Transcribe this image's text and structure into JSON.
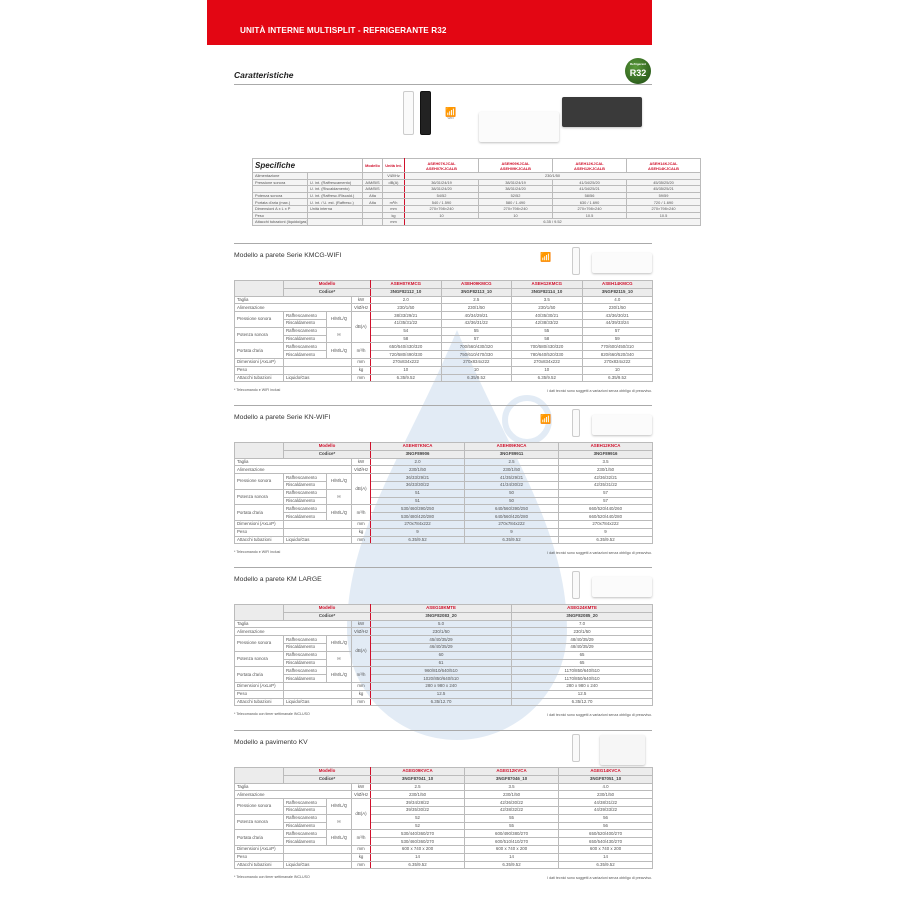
{
  "header": {
    "title": "UNITÀ INTERNE MULTISPLIT - REFRIGERANTE R32"
  },
  "caratteristiche": {
    "title": "Caratteristiche",
    "badge": "R32",
    "badge_small": "Refrigerant",
    "wifi_label": "WIFI"
  },
  "specifiche": {
    "title": "Specifiche",
    "modello": "Modello",
    "unita_int": "Unità Int.",
    "models": [
      [
        "ASEH07KJCAL",
        "ASEH07KJCALB"
      ],
      [
        "ASEH09KJCAL",
        "ASEH09KJCALB"
      ],
      [
        "ASEH12KJCAL",
        "ASEH12KJCALB"
      ],
      [
        "ASEH14KJCAL",
        "ASEH14KJCALB"
      ]
    ],
    "rows": [
      {
        "label": "Alimentazione",
        "sub": "",
        "mode": "",
        "unit": "V/Ø/Hz",
        "span": "230/1/50"
      },
      {
        "label": "Pressione sonora",
        "sub": "U. int. (Raffrescamento)",
        "mode": "A/M/B/S",
        "unit": "dB(A)",
        "values": [
          "36/31/24/19",
          "38/31/24/19",
          "41/34/25/20",
          "45/35/25/20"
        ]
      },
      {
        "label": "",
        "sub": "U. int. (Riscaldamento)",
        "mode": "A/M/B/S",
        "unit": "",
        "values": [
          "38/31/24/20",
          "38/31/24/20",
          "41/34/25/21",
          "45/35/25/21"
        ]
      },
      {
        "label": "Potenza sonora",
        "sub": "U. int. (Raffresc./Riscald.)",
        "mode": "Alta",
        "unit": "",
        "values": [
          "54/52",
          "52/52",
          "58/56",
          "59/59"
        ]
      },
      {
        "label": "Portata d'aria (max.)",
        "sub": "U. int. / U. est. (Raffresc.)",
        "mode": "Alta",
        "unit": "m³/h",
        "values": [
          "540 / 1.590",
          "580 / 1.490",
          "630 / 1.690",
          "720 / 1.690"
        ]
      },
      {
        "label": "Dimensioni A x L x P",
        "sub": "Unità interna",
        "mode": "",
        "unit": "mm",
        "values": [
          "270×798×240",
          "270×798×240",
          "270×798×240",
          "270×798×240"
        ]
      },
      {
        "label": "Peso",
        "sub": "",
        "mode": "",
        "unit": "kg",
        "values": [
          "10",
          "10",
          "10.5",
          "10.5"
        ]
      },
      {
        "label": "Attacchi tubazioni (liquido/gas)",
        "sub": "",
        "mode": "",
        "unit": "mm",
        "span": "6.35 / 9.52"
      }
    ]
  },
  "labels": {
    "modello": "Modello",
    "codice": "Codice*",
    "taglia": "Taglia",
    "alimentazione": "Alimentazione",
    "pressione": "Pressione sonora",
    "potenza": "Potenza sonora",
    "portata": "Portata d'aria",
    "dimensioni": "Dimensioni (AxLxP)",
    "peso": "Peso",
    "attacchi": "Attacchi tubazioni",
    "raff": "Raffrescamento",
    "risc": "Riscaldamento",
    "hmlq": "H/M/L/Q",
    "h": "H",
    "liqgas": "Liquido/Gas",
    "kw": "kW",
    "vhz": "V/Ø/Hz",
    "dba": "dB(A)",
    "m3h": "m³/h",
    "mm": "mm",
    "kg": "kg",
    "disclaimer": "I dati tecnici sono soggetti a variazioni senza obbligo di preavviso."
  },
  "sections": [
    {
      "title": "Modello a parete Serie KMCG-WIFI",
      "models": [
        "ASEH07KMCG",
        "ASEH09KMCG",
        "ASEH12KMCG",
        "ASEH14KMCG"
      ],
      "codes": [
        "3NGF82112_10",
        "3NGF82113_10",
        "3NGF82114_10",
        "3NGF82115_10"
      ],
      "taglia": [
        "2.0",
        "2.5",
        "3.5",
        "4.0"
      ],
      "alimentazione": [
        "230/1/50",
        "230/1/50",
        "230/1/50",
        "230/1/50"
      ],
      "pressione_raff": [
        "38/33/29/21",
        "40/34/29/21",
        "40/35/30/21",
        "43/36/30/21"
      ],
      "pressione_risc": [
        "41/35/31/22",
        "42/36/31/22",
        "42/38/33/22",
        "44/39/33/24"
      ],
      "potenza_raff": [
        "54",
        "55",
        "55",
        "57"
      ],
      "potenza_risc": [
        "58",
        "57",
        "58",
        "59"
      ],
      "portata_raff": [
        "650/540/430/320",
        "700/560/430/320",
        "700/580/430/320",
        "770/600/450/310"
      ],
      "portata_risc": [
        "720/580/490/330",
        "750/610/470/330",
        "780/640/520/330",
        "820/660/520/340"
      ],
      "dimensioni": [
        "270x834x222",
        "270x834x222",
        "270x834x222",
        "270x834x222"
      ],
      "peso": [
        "10",
        "10",
        "10",
        "10"
      ],
      "attacchi": [
        "6.35/9.52",
        "6.35/9.52",
        "6.35/9.52",
        "6.35/9.52"
      ],
      "note": "* Telecomando e WIFI inclusi"
    },
    {
      "title": "Modello a parete Serie KN-WIFI",
      "models": [
        "ASEH07KNCA",
        "ASEH09KNCA",
        "ASEH12KNCA"
      ],
      "codes": [
        "3NGF89906",
        "3NGF89911",
        "3NGF89916"
      ],
      "taglia": [
        "2.0",
        "2.5",
        "3.5"
      ],
      "alimentazione": [
        "230/1/50",
        "230/1/50",
        "230/1/50"
      ],
      "pressione_raff": [
        "36/33/29/21",
        "41/35/29/21",
        "42/36/32/21"
      ],
      "pressione_risc": [
        "36/33/30/22",
        "41/34/30/22",
        "42/35/31/22"
      ],
      "potenza_raff": [
        "51",
        "50",
        "57"
      ],
      "potenza_risc": [
        "51",
        "50",
        "57"
      ],
      "portata_raff": [
        "530/460/390/250",
        "640/560/390/250",
        "660/520/440/260"
      ],
      "portata_risc": [
        "530/480/420/280",
        "640/560/420/280",
        "660/520/440/280"
      ],
      "dimensioni": [
        "270x784x222",
        "270x784x222",
        "270x784x222"
      ],
      "peso": [
        "9",
        "9",
        "9"
      ],
      "attacchi": [
        "6.35/9.52",
        "6.35/9.52",
        "6.35/9.52"
      ],
      "note": "* Telecomando e WIFI inclusi"
    },
    {
      "title": "Modello a parete KM LARGE",
      "models": [
        "ASEG18KMTE",
        "ASEG24KMTE"
      ],
      "codes": [
        "3NGF82083_20",
        "3NGF82085_20"
      ],
      "taglia": [
        "5.0",
        "7.0"
      ],
      "alimentazione": [
        "230/1/50",
        "230/1/50"
      ],
      "pressione_raff": [
        "45/40/35/29",
        "48/40/35/29"
      ],
      "pressione_risc": [
        "46/40/35/29",
        "48/40/35/29"
      ],
      "potenza_raff": [
        "60",
        "65"
      ],
      "potenza_risc": [
        "61",
        "65"
      ],
      "portata_raff": [
        "960/810/640/510",
        "1170/850/640/510"
      ],
      "portata_risc": [
        "1020/850/640/510",
        "1170/850/640/510"
      ],
      "dimensioni": [
        "280 x 980 x 240",
        "280 x 980 x 240"
      ],
      "peso": [
        "12.5",
        "12.5"
      ],
      "attacchi": [
        "6.35/12.70",
        "6.35/12.70"
      ],
      "note": "* Telecomando con timer settimanale INCLUSO"
    },
    {
      "title": "Modello a pavimento KV",
      "models": [
        "AGEG09KVCA",
        "AGEG12KVCA",
        "AGEG14KVCA"
      ],
      "codes": [
        "3NGF87041_10",
        "3NGF87046_10",
        "3NGF87051_10"
      ],
      "taglia": [
        "2.5",
        "3.5",
        "4.0"
      ],
      "alimentazione": [
        "230/1/50",
        "230/1/50",
        "230/1/50"
      ],
      "pressione_raff": [
        "39/34/28/22",
        "42/36/30/22",
        "44/38/31/22"
      ],
      "pressione_risc": [
        "39/35/30/22",
        "42/38/32/22",
        "44/39/33/22"
      ],
      "potenza_raff": [
        "52",
        "55",
        "56"
      ],
      "potenza_risc": [
        "52",
        "55",
        "56"
      ],
      "portata_raff": [
        "530/440/360/270",
        "600/490/380/270",
        "650/520/400/270"
      ],
      "portata_risc": [
        "530/460/360/270",
        "600/510/410/270",
        "650/540/430/270"
      ],
      "dimensioni": [
        "600 x 740 x 200",
        "600 x 740 x 200",
        "600 x 740 x 200"
      ],
      "peso": [
        "14",
        "14",
        "14"
      ],
      "attacchi": [
        "6.35/9.52",
        "6.35/9.52",
        "6.35/9.52"
      ],
      "note": "* Telecomando con timer settimanale INCLUSO"
    }
  ],
  "colors": {
    "brand_red": "#e30613",
    "model_red": "#d0102b",
    "header_gray": "#ececec"
  }
}
